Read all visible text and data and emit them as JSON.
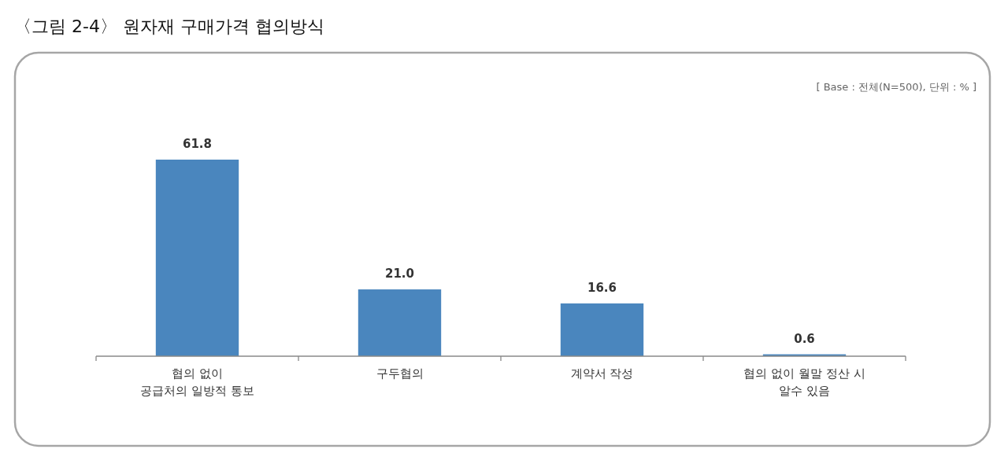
{
  "chart_data": {
    "type": "bar",
    "title": "〈그림 2-4〉 원자재 구매가격 협의방식",
    "annotations": [
      "[ Base : 전체(N=500), 단위 : % ]"
    ],
    "categories": [
      "협의 없이\n공급처의 일방적 통보",
      "구두협의",
      "계약서 작성",
      "협의 없이 월말 정산 시\n알수 있음"
    ],
    "values": [
      61.8,
      21.0,
      16.6,
      0.6
    ],
    "color": "#4a86be",
    "value_labels": [
      "61.8",
      "21.0",
      "16.6",
      "0.6"
    ]
  }
}
